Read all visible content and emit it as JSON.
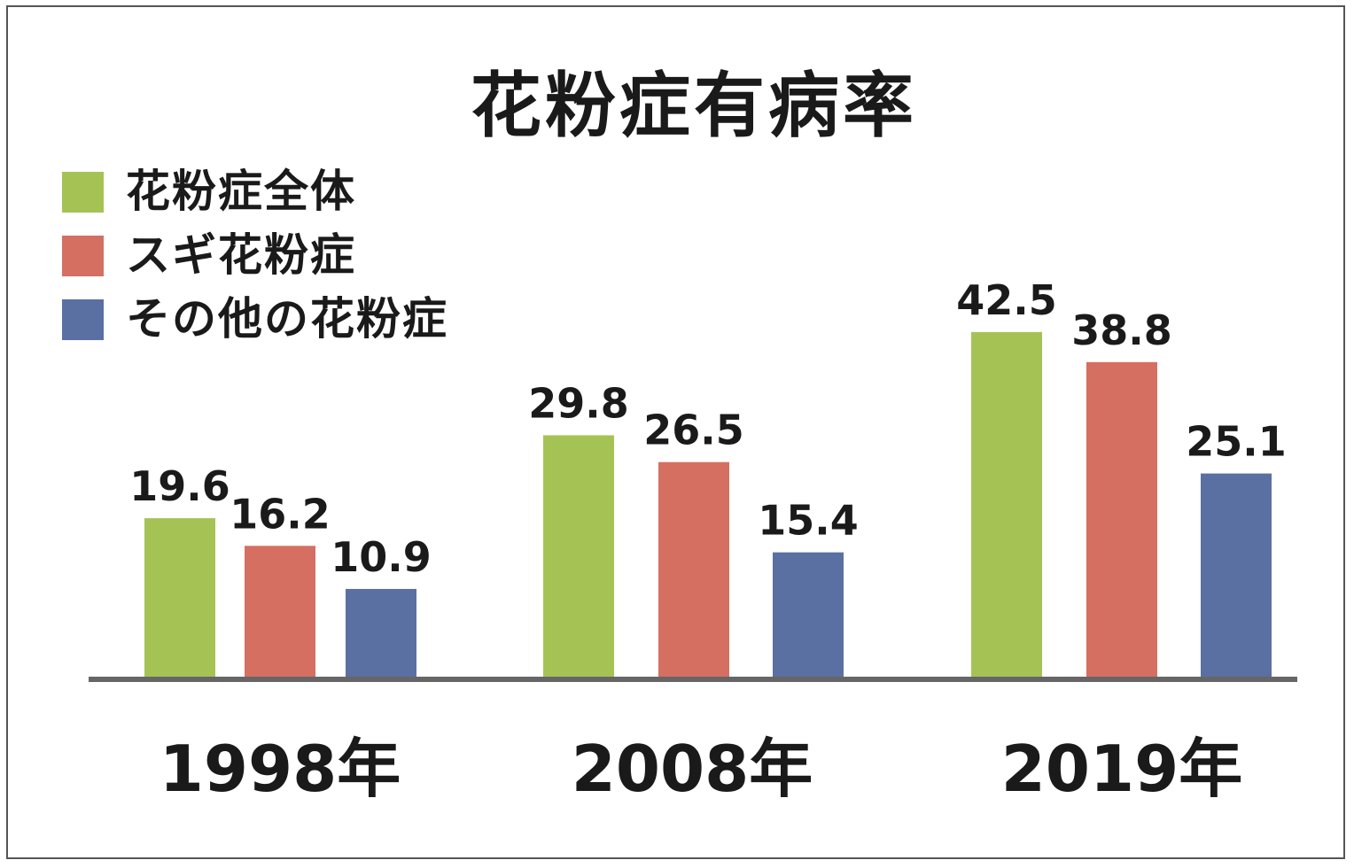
{
  "chart_data": {
    "type": "bar",
    "title": "花粉症有病率",
    "categories": [
      "1998年",
      "2008年",
      "2019年"
    ],
    "series": [
      {
        "name": "花粉症全体",
        "color": "#a5c355",
        "values": [
          19.6,
          29.8,
          42.5
        ]
      },
      {
        "name": "スギ花粉症",
        "color": "#d46f62",
        "values": [
          16.2,
          26.5,
          38.8
        ]
      },
      {
        "name": "その他の花粉症",
        "color": "#5a70a3",
        "values": [
          10.9,
          15.4,
          25.1
        ]
      }
    ],
    "value_labels": [
      [
        "19.6",
        "29.8",
        "42.5"
      ],
      [
        "16.2",
        "26.5",
        "38.8"
      ],
      [
        "10.9",
        "15.4",
        "25.1"
      ]
    ],
    "xlabel": "",
    "ylabel": "",
    "ylim": [
      0,
      45
    ],
    "grid": false,
    "legend_position": "top-left",
    "baseline_color": "#666666"
  }
}
